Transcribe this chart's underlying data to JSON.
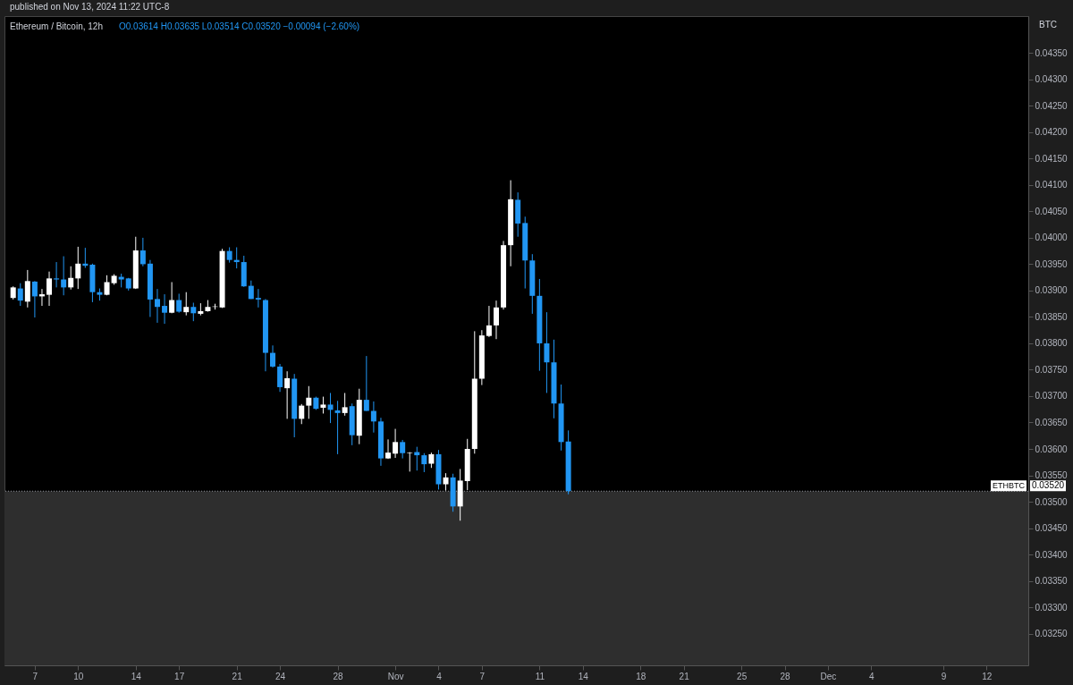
{
  "chart_data": {
    "type": "candlestick",
    "title": "Ethereum / Bitcoin, 12h",
    "annotations": [
      "published on Nov 13, 2024 11:22 UTC-8",
      "O0.03614 H0.03635 L0.03514 C0.03520 −0.00094 (−2.60%)",
      "BTC",
      "0.03520"
    ],
    "x": [
      "2024-10-05T12:00",
      "2024-10-06T00:00",
      "2024-10-06T12:00",
      "2024-10-07T00:00",
      "2024-10-07T12:00",
      "2024-10-08T00:00",
      "2024-10-08T12:00",
      "2024-10-09T00:00",
      "2024-10-09T12:00",
      "2024-10-10T00:00",
      "2024-10-10T12:00",
      "2024-10-11T00:00",
      "2024-10-11T12:00",
      "2024-10-12T00:00",
      "2024-10-12T12:00",
      "2024-10-13T00:00",
      "2024-10-13T12:00",
      "2024-10-14T00:00",
      "2024-10-14T12:00",
      "2024-10-15T00:00",
      "2024-10-15T12:00",
      "2024-10-16T00:00",
      "2024-10-16T12:00",
      "2024-10-17T00:00",
      "2024-10-17T12:00",
      "2024-10-18T00:00",
      "2024-10-18T12:00",
      "2024-10-19T00:00",
      "2024-10-19T12:00",
      "2024-10-20T00:00",
      "2024-10-20T12:00",
      "2024-10-21T00:00",
      "2024-10-21T12:00",
      "2024-10-22T00:00",
      "2024-10-22T12:00",
      "2024-10-23T00:00",
      "2024-10-23T12:00",
      "2024-10-24T00:00",
      "2024-10-24T12:00",
      "2024-10-25T00:00",
      "2024-10-25T12:00",
      "2024-10-26T00:00",
      "2024-10-26T12:00",
      "2024-10-27T00:00",
      "2024-10-27T12:00",
      "2024-10-28T00:00",
      "2024-10-28T12:00",
      "2024-10-29T00:00",
      "2024-10-29T12:00",
      "2024-10-30T00:00",
      "2024-10-30T12:00",
      "2024-10-31T00:00",
      "2024-10-31T12:00",
      "2024-11-01T00:00",
      "2024-11-01T12:00",
      "2024-11-02T00:00",
      "2024-11-02T12:00",
      "2024-11-03T00:00",
      "2024-11-03T12:00",
      "2024-11-04T00:00",
      "2024-11-04T12:00",
      "2024-11-05T00:00",
      "2024-11-05T12:00",
      "2024-11-06T00:00",
      "2024-11-06T12:00",
      "2024-11-07T00:00",
      "2024-11-07T12:00",
      "2024-11-08T00:00",
      "2024-11-08T12:00",
      "2024-11-09T00:00",
      "2024-11-09T12:00",
      "2024-11-10T00:00",
      "2024-11-10T12:00",
      "2024-11-11T00:00",
      "2024-11-11T12:00",
      "2024-11-12T00:00",
      "2024-11-12T12:00",
      "2024-11-13T00:00"
    ],
    "ohlc": [
      [
        0.03886,
        0.03908,
        0.03883,
        0.03906
      ],
      [
        0.03904,
        0.03914,
        0.03871,
        0.03881
      ],
      [
        0.03879,
        0.03939,
        0.03868,
        0.03918
      ],
      [
        0.03917,
        0.03918,
        0.03849,
        0.03889
      ],
      [
        0.03889,
        0.03903,
        0.03871,
        0.03893
      ],
      [
        0.03892,
        0.03936,
        0.03871,
        0.03923
      ],
      [
        0.03923,
        0.03954,
        0.03906,
        0.03921
      ],
      [
        0.03921,
        0.03965,
        0.03891,
        0.03906
      ],
      [
        0.03906,
        0.03946,
        0.03902,
        0.03924
      ],
      [
        0.03923,
        0.03983,
        0.03903,
        0.03951
      ],
      [
        0.03951,
        0.03981,
        0.03943,
        0.03947
      ],
      [
        0.03949,
        0.03951,
        0.03878,
        0.03897
      ],
      [
        0.03897,
        0.03904,
        0.03881,
        0.03892
      ],
      [
        0.03892,
        0.03929,
        0.03891,
        0.03916
      ],
      [
        0.03914,
        0.03931,
        0.03911,
        0.03928
      ],
      [
        0.03926,
        0.03932,
        0.03906,
        0.03921
      ],
      [
        0.03923,
        0.03924,
        0.039,
        0.03904
      ],
      [
        0.03904,
        0.04002,
        0.03903,
        0.03976
      ],
      [
        0.03976,
        0.04,
        0.03946,
        0.0395
      ],
      [
        0.03951,
        0.03958,
        0.0385,
        0.03883
      ],
      [
        0.03884,
        0.03903,
        0.03839,
        0.03869
      ],
      [
        0.03871,
        0.03893,
        0.03837,
        0.03858
      ],
      [
        0.03858,
        0.03916,
        0.03857,
        0.03882
      ],
      [
        0.03882,
        0.03894,
        0.03858,
        0.0386
      ],
      [
        0.03859,
        0.03897,
        0.03853,
        0.03869
      ],
      [
        0.03869,
        0.03877,
        0.03842,
        0.03857
      ],
      [
        0.03856,
        0.03876,
        0.03853,
        0.03861
      ],
      [
        0.03861,
        0.03882,
        0.0386,
        0.03869
      ],
      [
        0.03869,
        0.03875,
        0.03864,
        0.0387
      ],
      [
        0.03868,
        0.03979,
        0.03867,
        0.03975
      ],
      [
        0.03975,
        0.03982,
        0.03953,
        0.03958
      ],
      [
        0.03958,
        0.03982,
        0.03942,
        0.03954
      ],
      [
        0.03954,
        0.03966,
        0.03907,
        0.03908
      ],
      [
        0.03909,
        0.03919,
        0.03884,
        0.03884
      ],
      [
        0.03886,
        0.03903,
        0.03868,
        0.03883
      ],
      [
        0.03882,
        0.03884,
        0.03747,
        0.03782
      ],
      [
        0.03782,
        0.03796,
        0.03754,
        0.03756
      ],
      [
        0.03756,
        0.03761,
        0.03708,
        0.03717
      ],
      [
        0.03715,
        0.03747,
        0.03657,
        0.03734
      ],
      [
        0.03733,
        0.03742,
        0.03622,
        0.03657
      ],
      [
        0.03657,
        0.03685,
        0.03647,
        0.03682
      ],
      [
        0.03682,
        0.03719,
        0.03657,
        0.03697
      ],
      [
        0.03697,
        0.03699,
        0.03674,
        0.03676
      ],
      [
        0.03678,
        0.03699,
        0.03667,
        0.03684
      ],
      [
        0.03684,
        0.03706,
        0.03649,
        0.03674
      ],
      [
        0.03673,
        0.03691,
        0.0359,
        0.03668
      ],
      [
        0.03668,
        0.03706,
        0.03663,
        0.03679
      ],
      [
        0.03681,
        0.03686,
        0.03607,
        0.03626
      ],
      [
        0.03625,
        0.03714,
        0.03609,
        0.03693
      ],
      [
        0.03693,
        0.03776,
        0.03672,
        0.03672
      ],
      [
        0.03672,
        0.0369,
        0.03631,
        0.03652
      ],
      [
        0.03652,
        0.03659,
        0.03568,
        0.03582
      ],
      [
        0.03582,
        0.03618,
        0.03581,
        0.03593
      ],
      [
        0.03591,
        0.03638,
        0.03583,
        0.03613
      ],
      [
        0.03613,
        0.03617,
        0.03582,
        0.03592
      ],
      [
        0.03592,
        0.03594,
        0.03557,
        0.03593
      ],
      [
        0.03594,
        0.03604,
        0.03559,
        0.03588
      ],
      [
        0.03588,
        0.03592,
        0.03556,
        0.03571
      ],
      [
        0.03572,
        0.03593,
        0.03564,
        0.0359
      ],
      [
        0.0359,
        0.03598,
        0.03523,
        0.03533
      ],
      [
        0.03533,
        0.03554,
        0.03521,
        0.03546
      ],
      [
        0.03546,
        0.03553,
        0.03481,
        0.03491
      ],
      [
        0.03491,
        0.03562,
        0.03464,
        0.0354
      ],
      [
        0.03539,
        0.03619,
        0.03522,
        0.036
      ],
      [
        0.036,
        0.03823,
        0.03591,
        0.03733
      ],
      [
        0.03733,
        0.03825,
        0.03721,
        0.03815
      ],
      [
        0.03814,
        0.03871,
        0.03812,
        0.03834
      ],
      [
        0.03834,
        0.03881,
        0.03808,
        0.03868
      ],
      [
        0.03868,
        0.03994,
        0.03864,
        0.03986
      ],
      [
        0.03986,
        0.04109,
        0.03946,
        0.04073
      ],
      [
        0.04072,
        0.04086,
        0.04002,
        0.04027
      ],
      [
        0.04028,
        0.0404,
        0.03904,
        0.03957
      ],
      [
        0.03957,
        0.03969,
        0.03856,
        0.0389
      ],
      [
        0.0389,
        0.03922,
        0.03748,
        0.038
      ],
      [
        0.038,
        0.03859,
        0.03706,
        0.03764
      ],
      [
        0.03764,
        0.03807,
        0.03658,
        0.03686
      ],
      [
        0.03686,
        0.03722,
        0.03597,
        0.03613
      ],
      [
        0.03614,
        0.03635,
        0.03514,
        0.0352
      ]
    ],
    "colors": [
      "#ffffff",
      "#2196f3",
      "#ffffff",
      "#2196f3",
      "#ffffff",
      "#ffffff",
      "#2196f3",
      "#2196f3",
      "#ffffff",
      "#ffffff",
      "#2196f3",
      "#2196f3",
      "#2196f3",
      "#ffffff",
      "#ffffff",
      "#2196f3",
      "#2196f3",
      "#ffffff",
      "#2196f3",
      "#2196f3",
      "#2196f3",
      "#2196f3",
      "#ffffff",
      "#2196f3",
      "#ffffff",
      "#2196f3",
      "#ffffff",
      "#ffffff",
      "#ffffff",
      "#ffffff",
      "#2196f3",
      "#2196f3",
      "#2196f3",
      "#2196f3",
      "#2196f3",
      "#2196f3",
      "#2196f3",
      "#2196f3",
      "#ffffff",
      "#2196f3",
      "#ffffff",
      "#ffffff",
      "#2196f3",
      "#ffffff",
      "#2196f3",
      "#2196f3",
      "#ffffff",
      "#2196f3",
      "#ffffff",
      "#2196f3",
      "#2196f3",
      "#2196f3",
      "#ffffff",
      "#ffffff",
      "#2196f3",
      "#ffffff",
      "#2196f3",
      "#2196f3",
      "#ffffff",
      "#2196f3",
      "#ffffff",
      "#2196f3",
      "#ffffff",
      "#ffffff",
      "#ffffff",
      "#ffffff",
      "#ffffff",
      "#ffffff",
      "#ffffff",
      "#ffffff",
      "#2196f3",
      "#2196f3",
      "#2196f3",
      "#2196f3",
      "#2196f3",
      "#2196f3",
      "#2196f3",
      "#2196f3"
    ],
    "xlim": [
      "2024-10-05T05:00",
      "2024-12-14T14:00"
    ],
    "xticks": [
      {
        "value": "2024-10-07",
        "label": "7"
      },
      {
        "value": "2024-10-10",
        "label": "10"
      },
      {
        "value": "2024-10-14",
        "label": "14"
      },
      {
        "value": "2024-10-17",
        "label": "17"
      },
      {
        "value": "2024-10-21",
        "label": "21"
      },
      {
        "value": "2024-10-24",
        "label": "24"
      },
      {
        "value": "2024-10-28",
        "label": "28"
      },
      {
        "value": "2024-11-01",
        "label": "Nov"
      },
      {
        "value": "2024-11-04",
        "label": "4"
      },
      {
        "value": "2024-11-07",
        "label": "7"
      },
      {
        "value": "2024-11-11",
        "label": "11"
      },
      {
        "value": "2024-11-14",
        "label": "14"
      },
      {
        "value": "2024-11-18",
        "label": "18"
      },
      {
        "value": "2024-11-21",
        "label": "21"
      },
      {
        "value": "2024-11-25",
        "label": "25"
      },
      {
        "value": "2024-11-28",
        "label": "28"
      },
      {
        "value": "2024-12-01",
        "label": "Dec"
      },
      {
        "value": "2024-12-04",
        "label": "4"
      },
      {
        "value": "2024-12-09",
        "label": "9"
      },
      {
        "value": "2024-12-12",
        "label": "12"
      }
    ],
    "ylim": [
      0.0319,
      0.0442
    ],
    "yticks": [
      {
        "value": 0.0325,
        "label": "0.03250"
      },
      {
        "value": 0.033,
        "label": "0.03300"
      },
      {
        "value": 0.0335,
        "label": "0.03350"
      },
      {
        "value": 0.034,
        "label": "0.03400"
      },
      {
        "value": 0.0345,
        "label": "0.03450"
      },
      {
        "value": 0.035,
        "label": "0.03500"
      },
      {
        "value": 0.0355,
        "label": "0.03550"
      },
      {
        "value": 0.036,
        "label": "0.03600"
      },
      {
        "value": 0.0365,
        "label": "0.03650"
      },
      {
        "value": 0.037,
        "label": "0.03700"
      },
      {
        "value": 0.0375,
        "label": "0.03750"
      },
      {
        "value": 0.038,
        "label": "0.03800"
      },
      {
        "value": 0.0385,
        "label": "0.03850"
      },
      {
        "value": 0.039,
        "label": "0.03900"
      },
      {
        "value": 0.0395,
        "label": "0.03950"
      },
      {
        "value": 0.04,
        "label": "0.04000"
      },
      {
        "value": 0.0405,
        "label": "0.04050"
      },
      {
        "value": 0.041,
        "label": "0.04100"
      },
      {
        "value": 0.0415,
        "label": "0.04150"
      },
      {
        "value": 0.042,
        "label": "0.04200"
      },
      {
        "value": 0.0425,
        "label": "0.04250"
      },
      {
        "value": 0.043,
        "label": "0.04300"
      },
      {
        "value": 0.0435,
        "label": "0.04350"
      }
    ],
    "ref_lines": [
      {
        "axis": "y",
        "value": 0.0352,
        "label": "ETHBTC",
        "color": "#9598a1",
        "line_style": "dotted"
      }
    ],
    "bands": [
      {
        "axis": "y",
        "from": 0.0319,
        "to": 0.0352,
        "color": "#2e2e2e"
      }
    ],
    "grid": false
  }
}
